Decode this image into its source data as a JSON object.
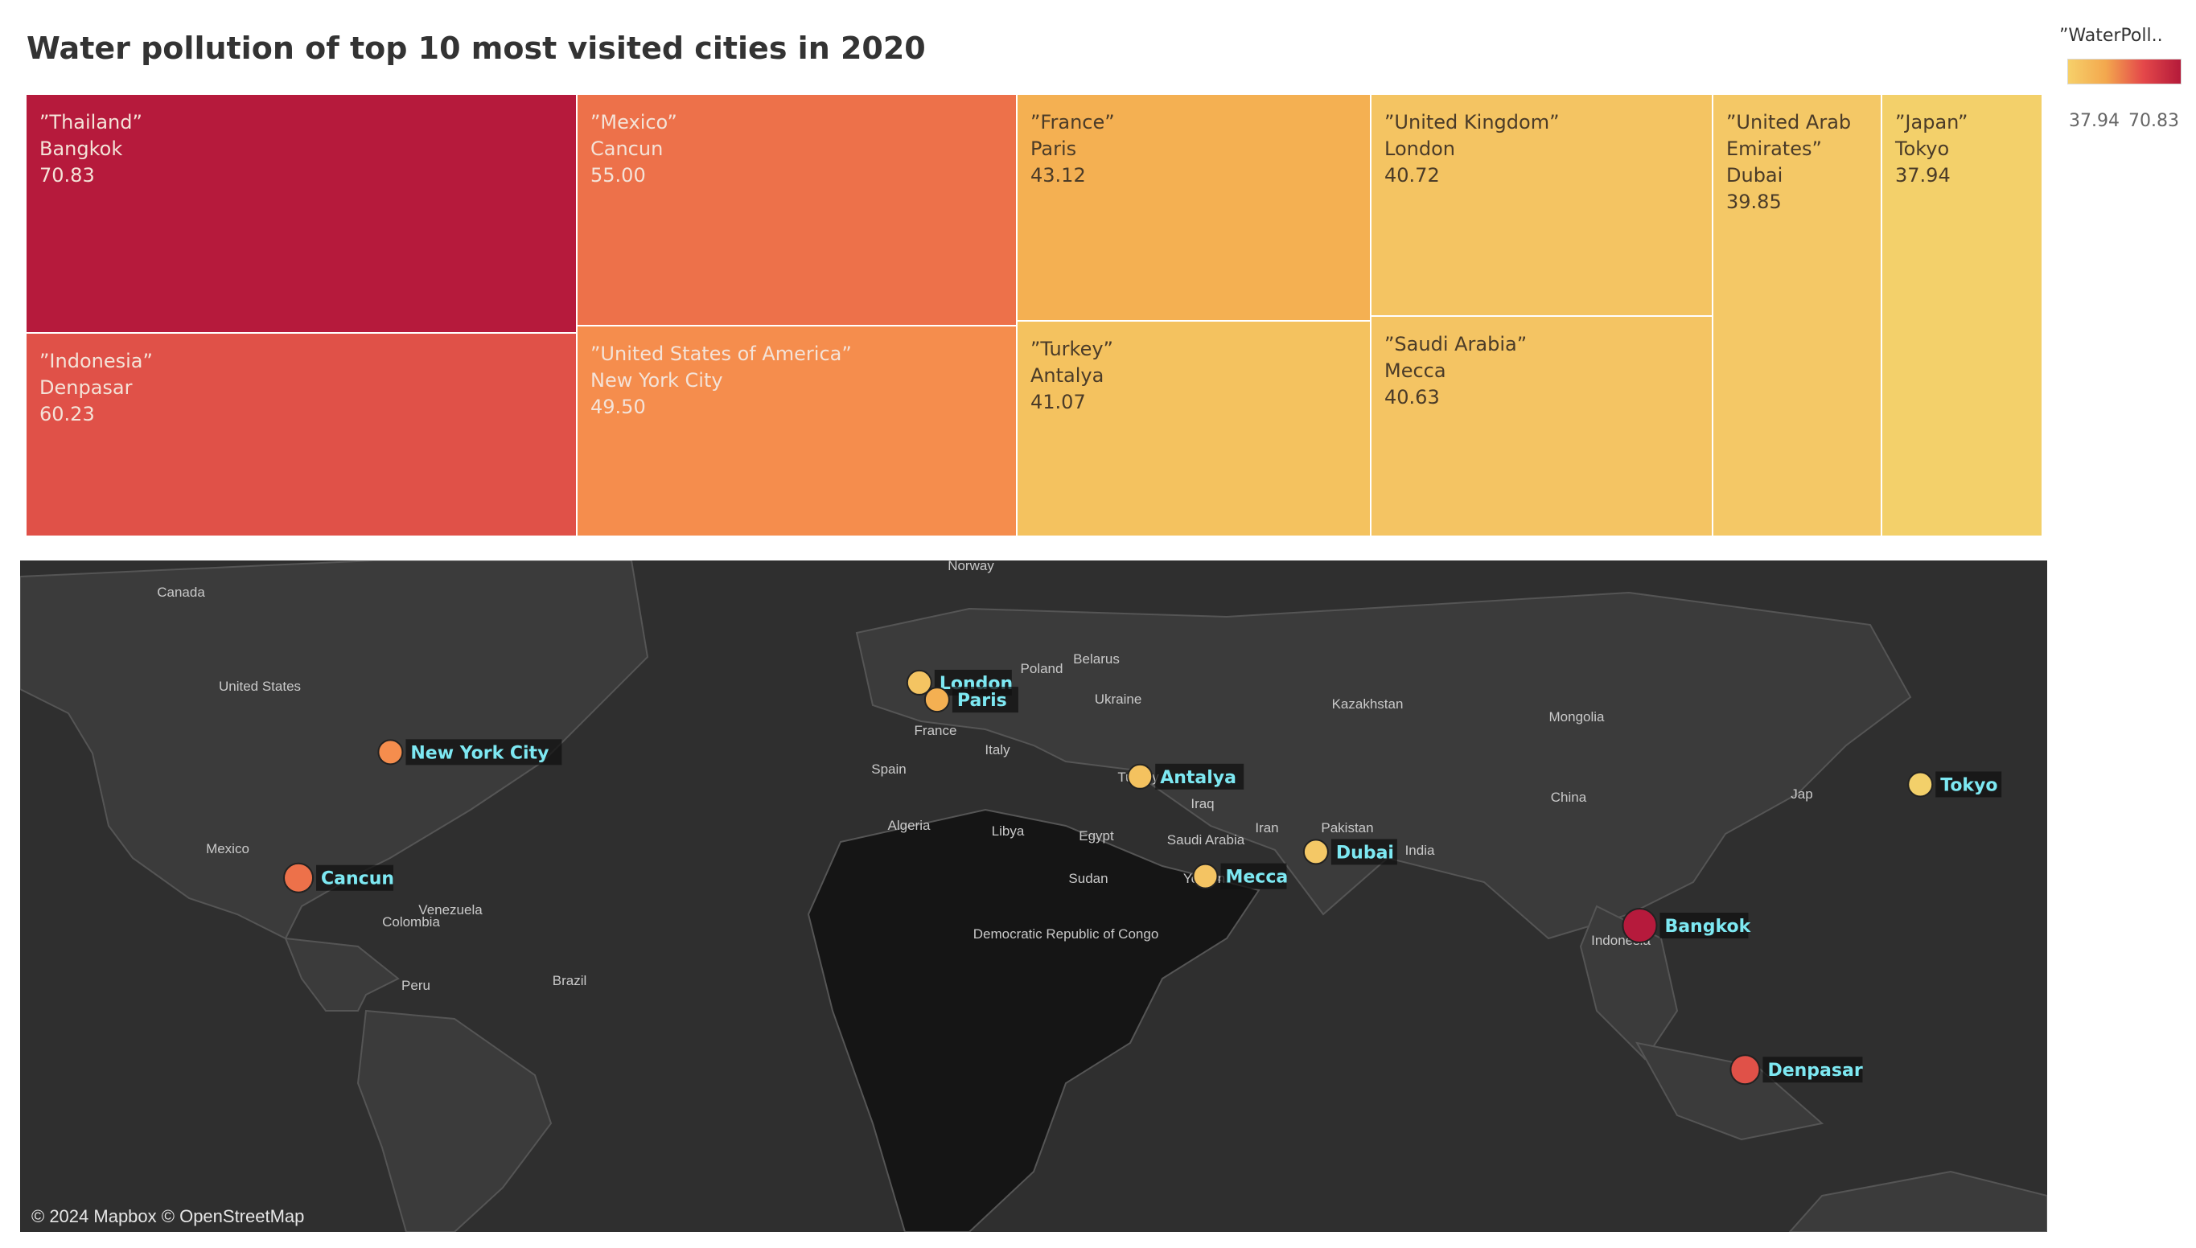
{
  "title": "Water pollution of top 10 most visited cities in 2020",
  "legend": {
    "title": "”WaterPoll..",
    "min": "37.94",
    "max": "70.83",
    "colors": [
      "#f6d06a",
      "#f3a84e",
      "#e4484a",
      "#b41a3a"
    ]
  },
  "chart_data": [
    {
      "type": "treemap",
      "measure": "Water pollution",
      "items": [
        {
          "country": "”Thailand”",
          "city": "Bangkok",
          "value_label": "70.83",
          "value": 70.83,
          "color": "#b61a3c"
        },
        {
          "country": "”Indonesia”",
          "city": "Denpasar",
          "value_label": "60.23",
          "value": 60.23,
          "color": "#e05148"
        },
        {
          "country": "”Mexico”",
          "city": "Cancun",
          "value_label": "55.00",
          "value": 55.0,
          "color": "#ed714a"
        },
        {
          "country": "”United States of America”",
          "city": "New York City",
          "value_label": "49.50",
          "value": 49.5,
          "color": "#f58d4d"
        },
        {
          "country": "”France”",
          "city": "Paris",
          "value_label": "43.12",
          "value": 43.12,
          "color": "#f4b052"
        },
        {
          "country": "”Turkey”",
          "city": "Antalya",
          "value_label": "41.07",
          "value": 41.07,
          "color": "#f4c25f"
        },
        {
          "country": "”United Kingdom”",
          "city": "London",
          "value_label": "40.72",
          "value": 40.72,
          "color": "#f4c462"
        },
        {
          "country": "”Saudi Arabia”",
          "city": "Mecca",
          "value_label": "40.63",
          "value": 40.63,
          "color": "#f4c463"
        },
        {
          "country": "”United Arab Emirates”",
          "city": "Dubai",
          "value_label": "39.85",
          "value": 39.85,
          "color": "#f4c866"
        },
        {
          "country": "”Japan”",
          "city": "Tokyo",
          "value_label": "37.94",
          "value": 37.94,
          "color": "#f3d06a"
        }
      ]
    },
    {
      "type": "map",
      "attribution": "© 2024 Mapbox © OpenStreetMap",
      "points": [
        {
          "city": "London",
          "lon": -0.13,
          "lat": 51.51,
          "color": "#f4c462"
        },
        {
          "city": "Paris",
          "lon": 2.35,
          "lat": 48.86,
          "color": "#f4b052"
        },
        {
          "city": "New York City",
          "lon": -74.0,
          "lat": 40.71,
          "color": "#f58d4d"
        },
        {
          "city": "Antalya",
          "lon": 30.7,
          "lat": 36.9,
          "color": "#f4c25f"
        },
        {
          "city": "Tokyo",
          "lon": 139.69,
          "lat": 35.69,
          "color": "#f3d06a"
        },
        {
          "city": "Dubai",
          "lon": 55.27,
          "lat": 25.2,
          "color": "#f4c866"
        },
        {
          "city": "Cancun",
          "lon": -86.85,
          "lat": 21.16,
          "color": "#ed714a"
        },
        {
          "city": "Mecca",
          "lon": 39.83,
          "lat": 21.42,
          "color": "#f4c463"
        },
        {
          "city": "Bangkok",
          "lon": 100.5,
          "lat": 13.75,
          "color": "#b61a3c"
        },
        {
          "city": "Denpasar",
          "lon": 115.22,
          "lat": -8.65,
          "color": "#e05148"
        }
      ],
      "place_labels": [
        "Norway",
        "Canada",
        "Poland",
        "Belarus",
        "Ukraine",
        "Kazakhstan",
        "Mongolia",
        "United States",
        "France",
        "Italy",
        "Spain",
        "Turkey",
        "Iraq",
        "Iran",
        "China",
        "Jap",
        "Algeria",
        "Libya",
        "Egypt",
        "Pakistan",
        "Saudi Arabia",
        "India",
        "Mexico",
        "Sudan",
        "Yemen",
        "Venezuela",
        "Colombia",
        "Indonesia",
        "Democratic Republic of Congo",
        "Peru",
        "Brazil"
      ]
    }
  ]
}
